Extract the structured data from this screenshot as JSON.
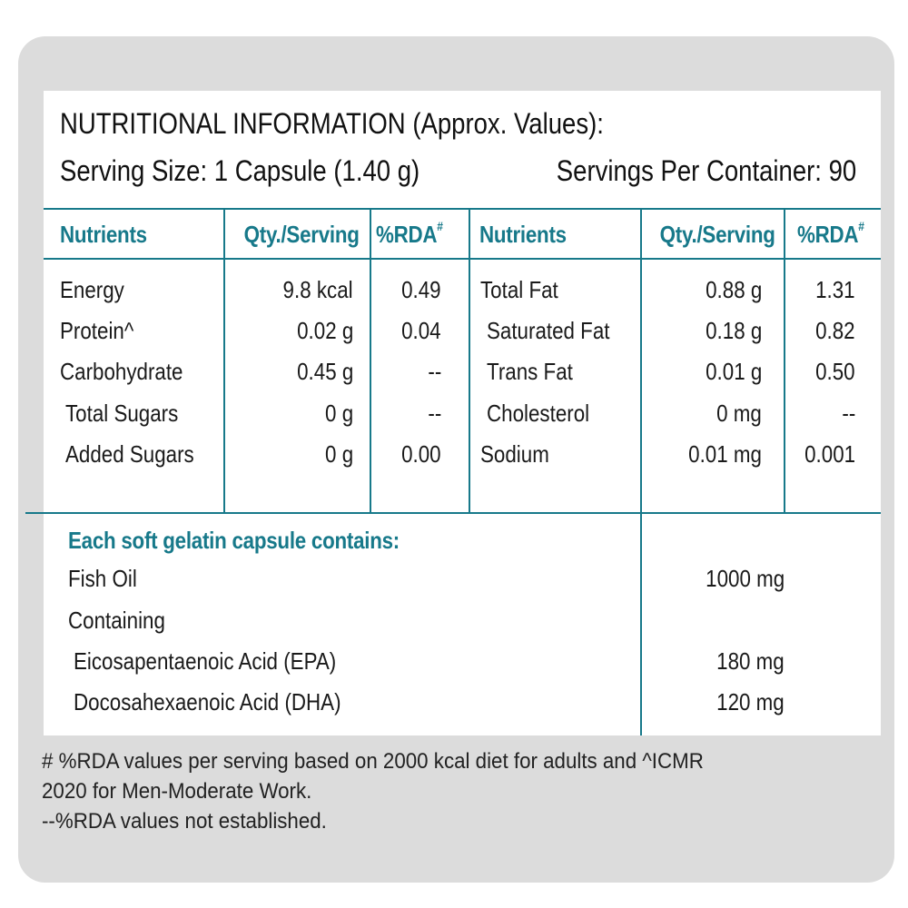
{
  "title": "NUTRITIONAL INFORMATION (Approx. Values):",
  "serving_size": "Serving Size: 1 Capsule (1.40 g)",
  "servings_per_container": "Servings Per Container: 90",
  "headers": {
    "nutrients": "Nutrients",
    "qty": "Qty./Serving",
    "rda": "%RDA",
    "rda_mark": "#"
  },
  "left_rows": [
    {
      "name": "Energy",
      "qty": "9.8 kcal",
      "rda": "0.49",
      "indent": false
    },
    {
      "name": "Protein^",
      "qty": "0.02 g",
      "rda": "0.04",
      "indent": false
    },
    {
      "name": "Carbohydrate",
      "qty": "0.45 g",
      "rda": "--",
      "indent": false
    },
    {
      "name": "Total Sugars",
      "qty": "0 g",
      "rda": "--",
      "indent": true
    },
    {
      "name": "Added Sugars",
      "qty": "0 g",
      "rda": "0.00",
      "indent": true
    }
  ],
  "right_rows": [
    {
      "name": "Total Fat",
      "qty": "0.88 g",
      "rda": "1.31",
      "indent": false
    },
    {
      "name": "Saturated Fat",
      "qty": "0.18 g",
      "rda": "0.82",
      "indent": true
    },
    {
      "name": "Trans Fat",
      "qty": "0.01 g",
      "rda": "0.50",
      "indent": true
    },
    {
      "name": "Cholesterol",
      "qty": "0 mg",
      "rda": "--",
      "indent": true
    },
    {
      "name": "Sodium",
      "qty": "0.01 mg",
      "rda": "0.001",
      "indent": false
    }
  ],
  "capsule": {
    "heading": "Each soft gelatin capsule contains:",
    "items": [
      {
        "name": "Fish Oil",
        "qty": "1000 mg",
        "indent": false
      },
      {
        "name": "Containing",
        "qty": "",
        "indent": false
      },
      {
        "name": "Eicosapentaenoic Acid (EPA)",
        "qty": "180 mg",
        "indent": true
      },
      {
        "name": "Docosahexaenoic Acid (DHA)",
        "qty": "120 mg",
        "indent": true
      }
    ]
  },
  "footnotes": [
    "# %RDA values per serving based on 2000 kcal diet for adults and ^ICMR",
    "2020 for Men-Moderate Work.",
    "--%RDA values not established."
  ],
  "colors": {
    "accent": "#17798a",
    "background": "#dcdcdc"
  }
}
